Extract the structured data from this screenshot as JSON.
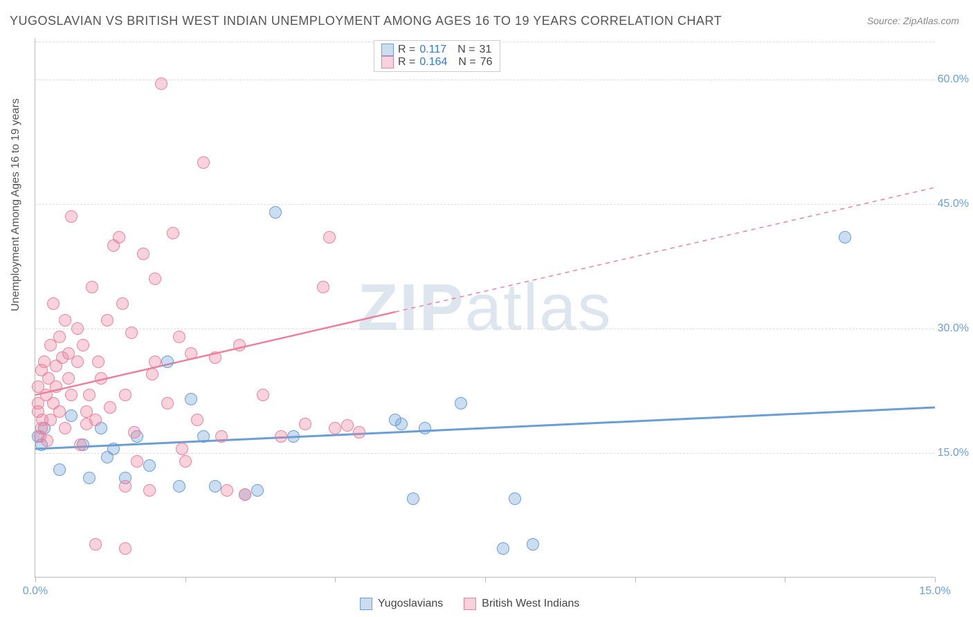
{
  "chart": {
    "type": "scatter",
    "title": "YUGOSLAVIAN VS BRITISH WEST INDIAN UNEMPLOYMENT AMONG AGES 16 TO 19 YEARS CORRELATION CHART",
    "source": "Source: ZipAtlas.com",
    "ylabel": "Unemployment Among Ages 16 to 19 years",
    "background_color": "#ffffff",
    "grid_color": "#dddddd",
    "axis_color": "#bbbbbb",
    "label_color": "#555555",
    "tick_label_color": "#6a9ed4",
    "title_fontsize": 18,
    "label_fontsize": 16,
    "tick_fontsize": 16,
    "xlim": [
      0,
      15
    ],
    "ylim": [
      0,
      65
    ],
    "yticks": [
      15,
      30,
      45,
      60
    ],
    "ytick_labels": [
      "15.0%",
      "30.0%",
      "45.0%",
      "60.0%"
    ],
    "xticks": [
      0,
      2.5,
      5,
      7.5,
      10,
      12.5,
      15
    ],
    "xtick_labels_shown": {
      "0": "0.0%",
      "15": "15.0%"
    },
    "marker_radius": 9,
    "marker_border_width": 1.5,
    "marker_fill_opacity": 0.35,
    "watermark": {
      "part1": "ZIP",
      "part2": "atlas",
      "color": "rgba(120,150,190,0.25)",
      "fontsize": 96
    },
    "series": [
      {
        "name": "Yugoslavians",
        "color": "#6a9ed4",
        "fill": "rgba(106,158,212,0.35)",
        "R": "0.117",
        "N": "31",
        "trendline": {
          "x1": 0,
          "y1": 15.5,
          "x2": 15,
          "y2": 20.5,
          "solid_until_x": 15,
          "width": 3
        },
        "points": [
          [
            0.05,
            17
          ],
          [
            0.1,
            16
          ],
          [
            0.15,
            18
          ],
          [
            0.4,
            13
          ],
          [
            0.6,
            19.5
          ],
          [
            0.8,
            16
          ],
          [
            0.9,
            12
          ],
          [
            1.1,
            18
          ],
          [
            1.2,
            14.5
          ],
          [
            1.3,
            15.5
          ],
          [
            1.5,
            12
          ],
          [
            1.7,
            17
          ],
          [
            1.9,
            13.5
          ],
          [
            2.2,
            26
          ],
          [
            2.4,
            11
          ],
          [
            2.6,
            21.5
          ],
          [
            2.8,
            17
          ],
          [
            3.0,
            11
          ],
          [
            3.5,
            10
          ],
          [
            3.7,
            10.5
          ],
          [
            4.0,
            44
          ],
          [
            4.3,
            17
          ],
          [
            6.0,
            19
          ],
          [
            6.1,
            18.5
          ],
          [
            6.3,
            9.5
          ],
          [
            6.5,
            18
          ],
          [
            7.1,
            21
          ],
          [
            7.8,
            3.5
          ],
          [
            8.0,
            9.5
          ],
          [
            8.3,
            4
          ],
          [
            13.5,
            41
          ]
        ]
      },
      {
        "name": "British West Indians",
        "color": "#ec809d",
        "fill": "rgba(236,128,157,0.35)",
        "R": "0.164",
        "N": "76",
        "trendline": {
          "x1": 0,
          "y1": 22,
          "x2": 15,
          "y2": 47,
          "solid_until_x": 6,
          "width": 2.5
        },
        "points": [
          [
            0.05,
            20
          ],
          [
            0.05,
            21
          ],
          [
            0.05,
            23
          ],
          [
            0.08,
            17
          ],
          [
            0.1,
            18
          ],
          [
            0.1,
            25
          ],
          [
            0.12,
            19
          ],
          [
            0.15,
            26
          ],
          [
            0.18,
            22
          ],
          [
            0.2,
            16.5
          ],
          [
            0.22,
            24
          ],
          [
            0.25,
            19
          ],
          [
            0.25,
            28
          ],
          [
            0.3,
            21
          ],
          [
            0.3,
            33
          ],
          [
            0.35,
            23
          ],
          [
            0.4,
            29
          ],
          [
            0.4,
            20
          ],
          [
            0.45,
            26.5
          ],
          [
            0.5,
            18
          ],
          [
            0.5,
            31
          ],
          [
            0.55,
            24
          ],
          [
            0.6,
            22
          ],
          [
            0.6,
            43.5
          ],
          [
            0.7,
            26
          ],
          [
            0.75,
            16
          ],
          [
            0.8,
            28
          ],
          [
            0.85,
            20
          ],
          [
            0.9,
            22
          ],
          [
            0.95,
            35
          ],
          [
            1.0,
            4
          ],
          [
            1.0,
            19
          ],
          [
            1.1,
            24
          ],
          [
            1.2,
            31
          ],
          [
            1.3,
            40
          ],
          [
            1.4,
            41
          ],
          [
            1.5,
            3.5
          ],
          [
            1.5,
            11
          ],
          [
            1.5,
            22
          ],
          [
            1.6,
            29.5
          ],
          [
            1.7,
            14
          ],
          [
            1.8,
            39
          ],
          [
            1.9,
            10.5
          ],
          [
            2.0,
            26
          ],
          [
            2.0,
            36
          ],
          [
            2.1,
            59.5
          ],
          [
            2.2,
            21
          ],
          [
            2.3,
            41.5
          ],
          [
            2.4,
            29
          ],
          [
            2.5,
            14
          ],
          [
            2.6,
            27
          ],
          [
            2.7,
            19
          ],
          [
            2.8,
            50
          ],
          [
            3.0,
            26.5
          ],
          [
            3.1,
            17
          ],
          [
            3.2,
            10.5
          ],
          [
            3.4,
            28
          ],
          [
            3.5,
            10
          ],
          [
            3.8,
            22
          ],
          [
            4.1,
            17
          ],
          [
            4.5,
            18.5
          ],
          [
            4.8,
            35
          ],
          [
            4.9,
            41
          ],
          [
            5.0,
            18
          ],
          [
            5.2,
            18.3
          ],
          [
            5.4,
            17.5
          ],
          [
            0.35,
            25.5
          ],
          [
            0.55,
            27
          ],
          [
            0.7,
            30
          ],
          [
            0.85,
            18.5
          ],
          [
            1.05,
            26
          ],
          [
            1.25,
            20.5
          ],
          [
            1.45,
            33
          ],
          [
            1.65,
            17.5
          ],
          [
            1.95,
            24.5
          ],
          [
            2.45,
            15.5
          ]
        ]
      }
    ],
    "legend_top": {
      "border_color": "#cccccc"
    },
    "legend_bottom_items": [
      "Yugoslavians",
      "British West Indians"
    ]
  }
}
